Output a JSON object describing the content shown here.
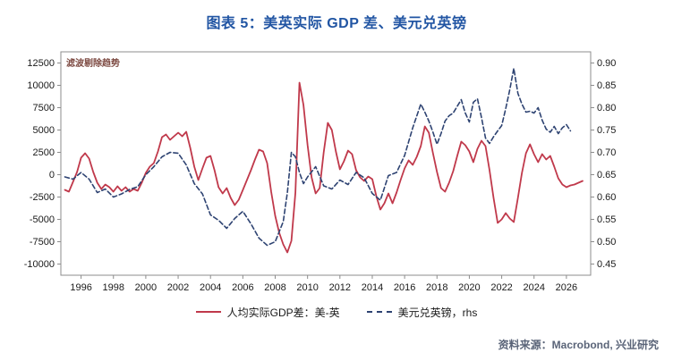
{
  "title": "图表 5：美英实际 GDP 差、美元兑英镑",
  "source": "资料来源：Macrobond, 兴业研究",
  "colors": {
    "title": "#2155a3",
    "source_text": "#5a6478",
    "axis_line": "#8c8c8c",
    "tick_text": "#1a1a1a",
    "annotation_text": "#7d4a42",
    "gdp_line": "#c0394b",
    "fx_line": "#2e4372"
  },
  "chart_data": {
    "type": "line",
    "title": "图表 5：美英实际 GDP 差、美元兑英镑",
    "annotation": "滤波剔除趋势",
    "grid": false,
    "legend_position": "bottom",
    "x_range": [
      1994.75,
      2027.5
    ],
    "x_ticks": [
      1996,
      1998,
      2000,
      2002,
      2004,
      2006,
      2008,
      2010,
      2012,
      2014,
      2016,
      2018,
      2020,
      2022,
      2024,
      2026
    ],
    "left_axis": {
      "min": -11250,
      "max": 13750,
      "ticks": [
        12500,
        10000,
        7500,
        5000,
        2500,
        0,
        -2500,
        -5000,
        -7500,
        -10000
      ]
    },
    "right_axis": {
      "min": 0.425,
      "max": 0.925,
      "ticks": [
        "0.90",
        "0.85",
        "0.80",
        "0.75",
        "0.70",
        "0.65",
        "0.60",
        "0.55",
        "0.50",
        "0.45"
      ]
    },
    "series": [
      {
        "name": "人均实际GDP差：美-英",
        "axis": "left",
        "style": "solid",
        "color": "#c0394b",
        "points": [
          [
            1995.0,
            -1700
          ],
          [
            1995.25,
            -1900
          ],
          [
            1995.5,
            -800
          ],
          [
            1995.75,
            300
          ],
          [
            1996.0,
            1900
          ],
          [
            1996.25,
            2400
          ],
          [
            1996.5,
            1800
          ],
          [
            1996.75,
            300
          ],
          [
            1997.0,
            -900
          ],
          [
            1997.25,
            -1600
          ],
          [
            1997.5,
            -1100
          ],
          [
            1997.75,
            -1400
          ],
          [
            1998.0,
            -1900
          ],
          [
            1998.25,
            -1300
          ],
          [
            1998.5,
            -1800
          ],
          [
            1998.75,
            -1400
          ],
          [
            1999.0,
            -1900
          ],
          [
            1999.25,
            -1600
          ],
          [
            1999.5,
            -1800
          ],
          [
            1999.75,
            -900
          ],
          [
            2000.0,
            200
          ],
          [
            2000.25,
            900
          ],
          [
            2000.5,
            1300
          ],
          [
            2000.75,
            2600
          ],
          [
            2001.0,
            4200
          ],
          [
            2001.25,
            4500
          ],
          [
            2001.5,
            3900
          ],
          [
            2001.75,
            4300
          ],
          [
            2002.0,
            4700
          ],
          [
            2002.25,
            4300
          ],
          [
            2002.5,
            4800
          ],
          [
            2002.75,
            3000
          ],
          [
            2003.0,
            900
          ],
          [
            2003.25,
            -600
          ],
          [
            2003.5,
            700
          ],
          [
            2003.75,
            1900
          ],
          [
            2004.0,
            2100
          ],
          [
            2004.25,
            500
          ],
          [
            2004.5,
            -1400
          ],
          [
            2004.75,
            -2100
          ],
          [
            2005.0,
            -1500
          ],
          [
            2005.25,
            -2600
          ],
          [
            2005.5,
            -3400
          ],
          [
            2005.75,
            -2800
          ],
          [
            2006.0,
            -1700
          ],
          [
            2006.25,
            -600
          ],
          [
            2006.5,
            500
          ],
          [
            2006.75,
            1700
          ],
          [
            2007.0,
            2800
          ],
          [
            2007.25,
            2600
          ],
          [
            2007.5,
            1300
          ],
          [
            2007.75,
            -1900
          ],
          [
            2008.0,
            -4600
          ],
          [
            2008.25,
            -6500
          ],
          [
            2008.5,
            -7800
          ],
          [
            2008.75,
            -8700
          ],
          [
            2009.0,
            -7400
          ],
          [
            2009.25,
            -2000
          ],
          [
            2009.5,
            10300
          ],
          [
            2009.75,
            7800
          ],
          [
            2010.0,
            3300
          ],
          [
            2010.25,
            -300
          ],
          [
            2010.5,
            -2100
          ],
          [
            2010.75,
            -1500
          ],
          [
            2011.0,
            2500
          ],
          [
            2011.25,
            5800
          ],
          [
            2011.5,
            5000
          ],
          [
            2011.75,
            2600
          ],
          [
            2012.0,
            600
          ],
          [
            2012.25,
            1500
          ],
          [
            2012.5,
            2700
          ],
          [
            2012.75,
            2300
          ],
          [
            2013.0,
            500
          ],
          [
            2013.25,
            -300
          ],
          [
            2013.5,
            -700
          ],
          [
            2013.75,
            -200
          ],
          [
            2014.0,
            -500
          ],
          [
            2014.25,
            -2400
          ],
          [
            2014.5,
            -3900
          ],
          [
            2014.75,
            -3200
          ],
          [
            2015.0,
            -2100
          ],
          [
            2015.25,
            -3200
          ],
          [
            2015.5,
            -2000
          ],
          [
            2015.75,
            -600
          ],
          [
            2016.0,
            700
          ],
          [
            2016.25,
            1600
          ],
          [
            2016.5,
            1100
          ],
          [
            2016.75,
            2000
          ],
          [
            2017.0,
            3200
          ],
          [
            2017.25,
            5400
          ],
          [
            2017.5,
            4700
          ],
          [
            2017.75,
            2400
          ],
          [
            2018.0,
            300
          ],
          [
            2018.25,
            -1500
          ],
          [
            2018.5,
            -1900
          ],
          [
            2018.75,
            -900
          ],
          [
            2019.0,
            400
          ],
          [
            2019.25,
            2100
          ],
          [
            2019.5,
            3700
          ],
          [
            2019.75,
            3300
          ],
          [
            2020.0,
            2600
          ],
          [
            2020.25,
            1400
          ],
          [
            2020.5,
            2900
          ],
          [
            2020.75,
            3800
          ],
          [
            2021.0,
            3200
          ],
          [
            2021.25,
            500
          ],
          [
            2021.5,
            -2600
          ],
          [
            2021.75,
            -5400
          ],
          [
            2022.0,
            -5000
          ],
          [
            2022.25,
            -4300
          ],
          [
            2022.5,
            -4900
          ],
          [
            2022.75,
            -5300
          ],
          [
            2023.0,
            -2600
          ],
          [
            2023.25,
            200
          ],
          [
            2023.5,
            2400
          ],
          [
            2023.75,
            3400
          ],
          [
            2024.0,
            2300
          ],
          [
            2024.25,
            1400
          ],
          [
            2024.5,
            2300
          ],
          [
            2024.75,
            1700
          ],
          [
            2025.0,
            2100
          ],
          [
            2025.25,
            900
          ],
          [
            2025.5,
            -400
          ],
          [
            2025.75,
            -1100
          ],
          [
            2026.0,
            -1400
          ],
          [
            2026.25,
            -1200
          ],
          [
            2026.5,
            -1100
          ],
          [
            2026.75,
            -900
          ],
          [
            2027.0,
            -700
          ]
        ]
      },
      {
        "name": "美元兑英镑，rhs",
        "axis": "right",
        "style": "dashed",
        "color": "#2e4372",
        "points": [
          [
            1995.0,
            0.645
          ],
          [
            1995.5,
            0.64
          ],
          [
            1996.0,
            0.655
          ],
          [
            1996.5,
            0.64
          ],
          [
            1997.0,
            0.61
          ],
          [
            1997.5,
            0.618
          ],
          [
            1998.0,
            0.6
          ],
          [
            1998.5,
            0.607
          ],
          [
            1999.0,
            0.617
          ],
          [
            1999.5,
            0.623
          ],
          [
            2000.0,
            0.65
          ],
          [
            2000.5,
            0.668
          ],
          [
            2001.0,
            0.69
          ],
          [
            2001.5,
            0.7
          ],
          [
            2002.0,
            0.698
          ],
          [
            2002.5,
            0.672
          ],
          [
            2003.0,
            0.63
          ],
          [
            2003.5,
            0.607
          ],
          [
            2004.0,
            0.56
          ],
          [
            2004.5,
            0.548
          ],
          [
            2005.0,
            0.53
          ],
          [
            2005.5,
            0.552
          ],
          [
            2006.0,
            0.568
          ],
          [
            2006.5,
            0.54
          ],
          [
            2007.0,
            0.508
          ],
          [
            2007.5,
            0.492
          ],
          [
            2008.0,
            0.5
          ],
          [
            2008.5,
            0.545
          ],
          [
            2008.75,
            0.61
          ],
          [
            2009.0,
            0.7
          ],
          [
            2009.25,
            0.69
          ],
          [
            2009.5,
            0.655
          ],
          [
            2009.75,
            0.63
          ],
          [
            2010.0,
            0.645
          ],
          [
            2010.5,
            0.668
          ],
          [
            2011.0,
            0.625
          ],
          [
            2011.5,
            0.618
          ],
          [
            2012.0,
            0.638
          ],
          [
            2012.5,
            0.628
          ],
          [
            2013.0,
            0.655
          ],
          [
            2013.5,
            0.643
          ],
          [
            2014.0,
            0.608
          ],
          [
            2014.5,
            0.593
          ],
          [
            2015.0,
            0.648
          ],
          [
            2015.5,
            0.655
          ],
          [
            2016.0,
            0.693
          ],
          [
            2016.5,
            0.755
          ],
          [
            2017.0,
            0.808
          ],
          [
            2017.25,
            0.79
          ],
          [
            2017.5,
            0.77
          ],
          [
            2017.75,
            0.745
          ],
          [
            2018.0,
            0.718
          ],
          [
            2018.25,
            0.742
          ],
          [
            2018.5,
            0.77
          ],
          [
            2018.75,
            0.782
          ],
          [
            2019.0,
            0.788
          ],
          [
            2019.25,
            0.803
          ],
          [
            2019.5,
            0.818
          ],
          [
            2019.75,
            0.788
          ],
          [
            2020.0,
            0.768
          ],
          [
            2020.25,
            0.812
          ],
          [
            2020.5,
            0.82
          ],
          [
            2020.75,
            0.778
          ],
          [
            2021.0,
            0.732
          ],
          [
            2021.25,
            0.72
          ],
          [
            2021.5,
            0.735
          ],
          [
            2021.75,
            0.748
          ],
          [
            2022.0,
            0.76
          ],
          [
            2022.25,
            0.798
          ],
          [
            2022.5,
            0.84
          ],
          [
            2022.75,
            0.888
          ],
          [
            2023.0,
            0.832
          ],
          [
            2023.25,
            0.808
          ],
          [
            2023.5,
            0.79
          ],
          [
            2023.75,
            0.792
          ],
          [
            2024.0,
            0.788
          ],
          [
            2024.25,
            0.8
          ],
          [
            2024.5,
            0.772
          ],
          [
            2024.75,
            0.752
          ],
          [
            2025.0,
            0.745
          ],
          [
            2025.25,
            0.758
          ],
          [
            2025.5,
            0.742
          ],
          [
            2025.75,
            0.755
          ],
          [
            2026.0,
            0.762
          ],
          [
            2026.25,
            0.748
          ]
        ]
      }
    ]
  }
}
